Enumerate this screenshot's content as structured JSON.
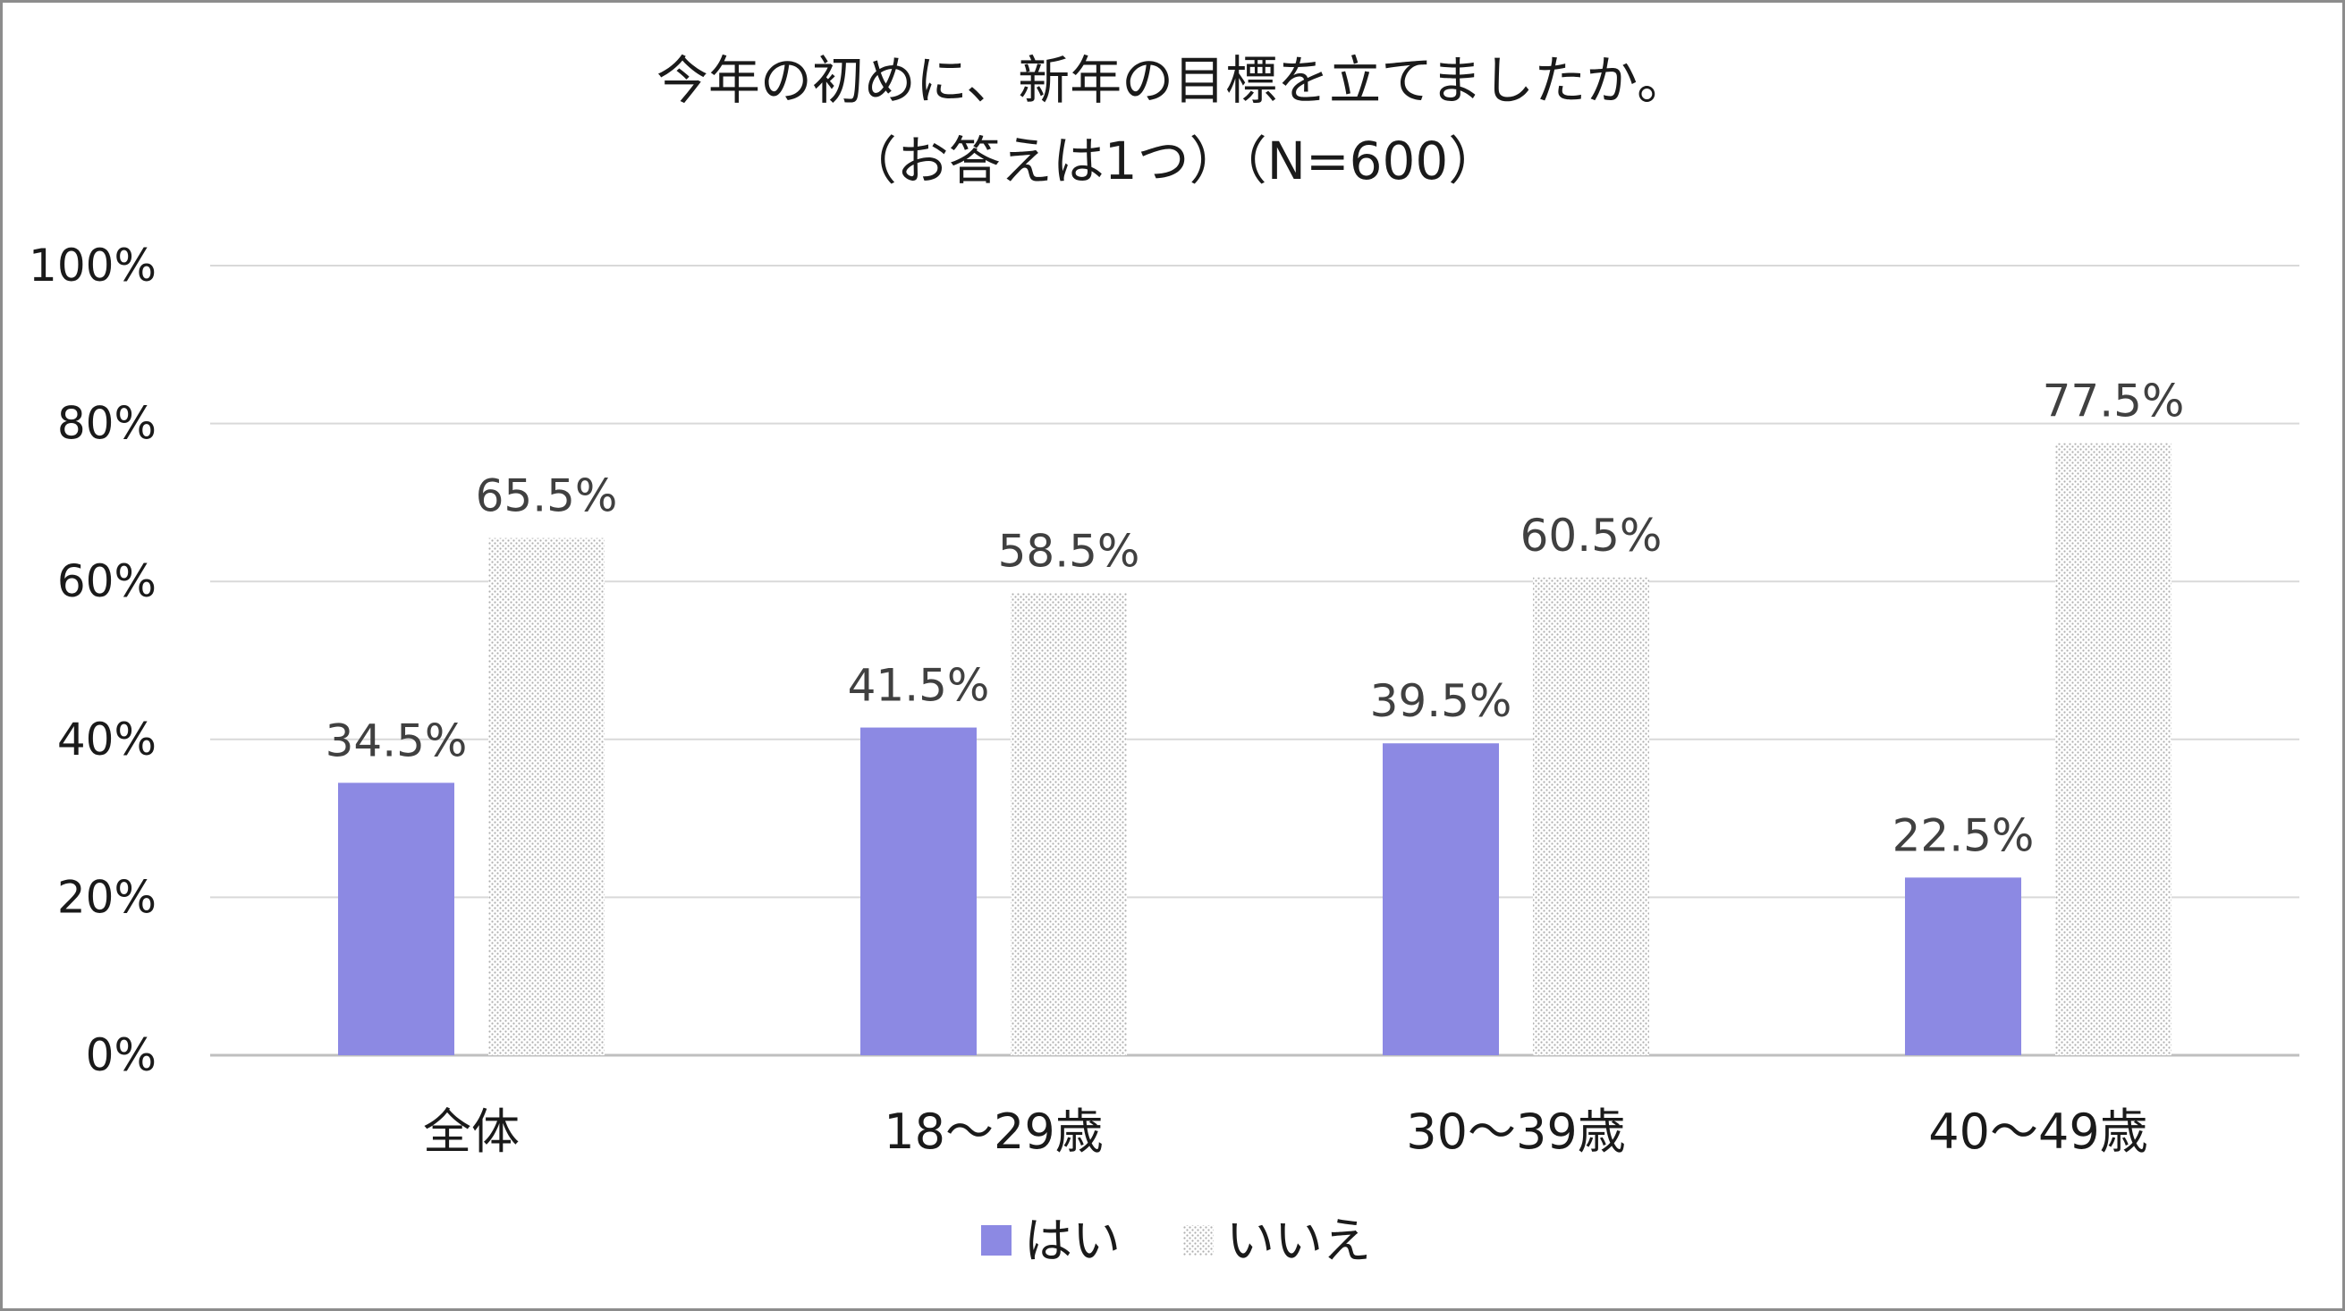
{
  "chart_data": {
    "type": "bar",
    "title": "今年の初めに、新年の目標を立てましたか。",
    "subtitle": "（お答えは1つ）（N=600）",
    "categories": [
      "全体",
      "18〜29歳",
      "30〜39歳",
      "40〜49歳"
    ],
    "series": [
      {
        "name": "はい",
        "values": [
          34.5,
          41.5,
          39.5,
          22.5
        ],
        "color": "#8c89e3",
        "pattern": "solid"
      },
      {
        "name": "いいえ",
        "values": [
          65.5,
          58.5,
          60.5,
          77.5
        ],
        "color": "#b8b8b8",
        "pattern": "dotted"
      }
    ],
    "data_labels": [
      [
        "34.5%",
        "41.5%",
        "39.5%",
        "22.5%"
      ],
      [
        "65.5%",
        "58.5%",
        "60.5%",
        "77.5%"
      ]
    ],
    "yticks": [
      "0%",
      "20%",
      "40%",
      "60%",
      "80%",
      "100%"
    ],
    "ylim": [
      0,
      100
    ],
    "grid": true,
    "legend_position": "bottom"
  }
}
